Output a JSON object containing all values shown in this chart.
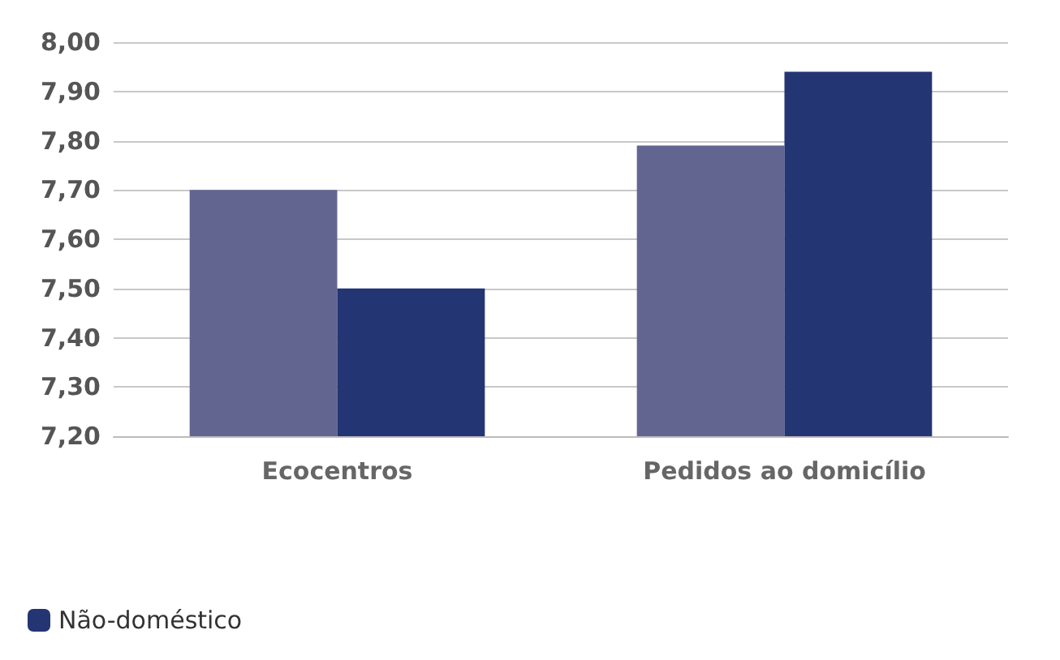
{
  "chart_data": {
    "type": "bar",
    "categories": [
      "Ecocentros",
      "Pedidos ao domicílio"
    ],
    "series": [
      {
        "color": "#636591",
        "values": [
          7.7,
          7.79
        ]
      },
      {
        "name": "Não-doméstico",
        "color": "#233572",
        "values": [
          7.5,
          7.94
        ]
      }
    ],
    "ylim": [
      7.2,
      8.0
    ],
    "yticks": [
      {
        "value": 7.2,
        "label": "7,20"
      },
      {
        "value": 7.3,
        "label": "7,30"
      },
      {
        "value": 7.4,
        "label": "7,40"
      },
      {
        "value": 7.5,
        "label": "7,50"
      },
      {
        "value": 7.6,
        "label": "7,60"
      },
      {
        "value": 7.7,
        "label": "7,70"
      },
      {
        "value": 7.8,
        "label": "7,80"
      },
      {
        "value": 7.9,
        "label": "7,90"
      },
      {
        "value": 8.0,
        "label": "8,00"
      }
    ],
    "grid": "y",
    "legend": "bottom left"
  }
}
